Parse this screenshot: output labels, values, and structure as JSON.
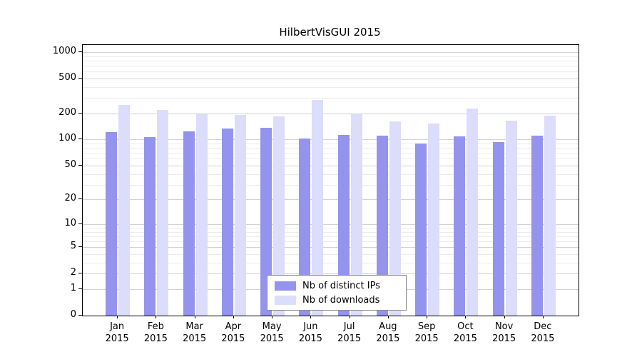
{
  "title": "HilbertVisGUI 2015",
  "chart_data": {
    "type": "bar",
    "title": "HilbertVisGUI 2015",
    "categories": [
      "Jan 2015",
      "Feb 2015",
      "Mar 2015",
      "Apr 2015",
      "May 2015",
      "Jun 2015",
      "Jul 2015",
      "Aug 2015",
      "Sep 2015",
      "Oct 2015",
      "Nov 2015",
      "Dec 2015"
    ],
    "category_months": [
      "Jan",
      "Feb",
      "Mar",
      "Apr",
      "May",
      "Jun",
      "Jul",
      "Aug",
      "Sep",
      "Oct",
      "Nov",
      "Dec"
    ],
    "category_year": "2015",
    "series": [
      {
        "name": "Nb of distinct IPs",
        "color": "#9494ee",
        "values": [
          122,
          106,
          124,
          134,
          137,
          102,
          113,
          110,
          90,
          108,
          93,
          110
        ]
      },
      {
        "name": "Nb of downloads",
        "color": "#dcdcfb",
        "values": [
          250,
          218,
          196,
          190,
          186,
          285,
          196,
          162,
          152,
          228,
          166,
          188
        ]
      }
    ],
    "y_ticks": [
      0,
      1,
      2,
      5,
      10,
      20,
      50,
      100,
      200,
      500,
      1000
    ],
    "y_scale": "log10(value+1)",
    "ylim": [
      0,
      1000
    ],
    "xlabel": "",
    "ylabel": "",
    "grid": true,
    "legend_position": "bottom-center-inside"
  },
  "legend": {
    "items": [
      {
        "label": "Nb of distinct IPs",
        "color": "#9494ee"
      },
      {
        "label": "Nb of downloads",
        "color": "#dcdcfb"
      }
    ]
  }
}
